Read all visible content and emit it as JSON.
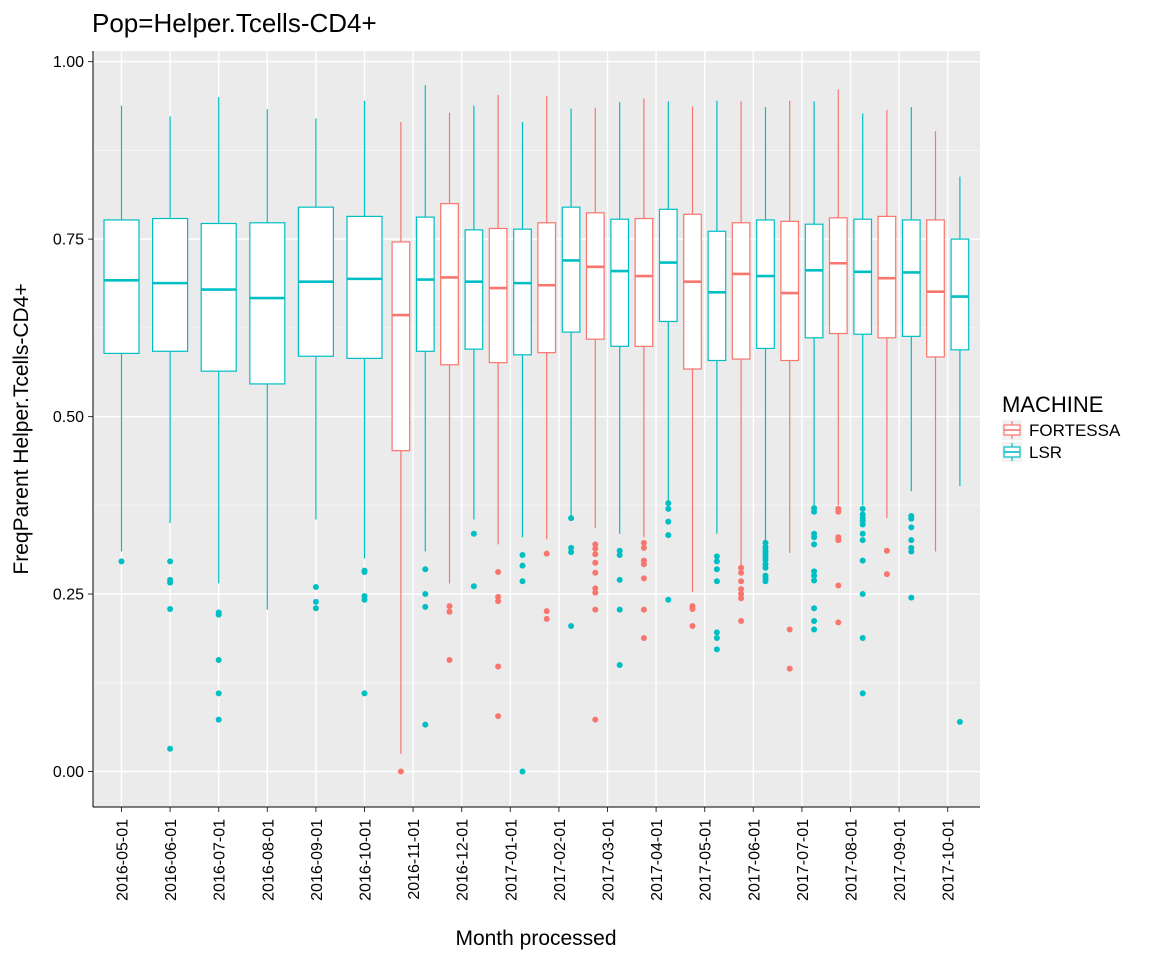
{
  "chart_data": {
    "type": "boxplot",
    "title": "Pop=Helper.Tcells-CD4+",
    "xlabel": "Month processed",
    "ylabel": "FreqParent  Helper.Tcells-CD4+",
    "ylim": [
      -0.05,
      1.015
    ],
    "yticks": [
      "0.00",
      "0.25",
      "0.50",
      "0.75",
      "1.00"
    ],
    "grid": true,
    "legend": {
      "title": "MACHINE",
      "position": "right"
    },
    "colors": {
      "FORTESSA": "#F8766D",
      "LSR": "#00BFC4"
    },
    "categories": [
      "2016-05-01",
      "2016-06-01",
      "2016-07-01",
      "2016-08-01",
      "2016-09-01",
      "2016-10-01",
      "2016-11-01",
      "2016-12-01",
      "2017-01-01",
      "2017-02-01",
      "2017-03-01",
      "2017-04-01",
      "2017-05-01",
      "2017-06-01",
      "2017-07-01",
      "2017-08-01",
      "2017-09-01",
      "2017-10-01"
    ],
    "series": [
      {
        "name": "FORTESSA",
        "boxes": [
          {
            "category": "2016-11-01",
            "min": 0.025,
            "q1": 0.452,
            "median": 0.643,
            "q3": 0.746,
            "max": 0.915,
            "outliers": [
              0.0
            ]
          },
          {
            "category": "2016-12-01",
            "min": 0.265,
            "q1": 0.573,
            "median": 0.696,
            "q3": 0.8,
            "max": 0.928,
            "outliers": [
              0.233,
              0.225,
              0.157
            ]
          },
          {
            "category": "2017-01-01",
            "min": 0.32,
            "q1": 0.576,
            "median": 0.681,
            "q3": 0.765,
            "max": 0.953,
            "outliers": [
              0.281,
              0.246,
              0.24,
              0.148,
              0.078
            ]
          },
          {
            "category": "2017-02-01",
            "min": 0.327,
            "q1": 0.59,
            "median": 0.685,
            "q3": 0.773,
            "max": 0.952,
            "outliers": [
              0.307,
              0.226,
              0.215
            ]
          },
          {
            "category": "2017-03-01",
            "min": 0.343,
            "q1": 0.609,
            "median": 0.711,
            "q3": 0.787,
            "max": 0.935,
            "outliers": [
              0.32,
              0.314,
              0.306,
              0.294,
              0.28,
              0.258,
              0.252,
              0.228,
              0.073
            ]
          },
          {
            "category": "2017-04-01",
            "min": 0.33,
            "q1": 0.599,
            "median": 0.698,
            "q3": 0.779,
            "max": 0.948,
            "outliers": [
              0.322,
              0.315,
              0.297,
              0.292,
              0.272,
              0.228,
              0.188
            ]
          },
          {
            "category": "2017-05-01",
            "min": 0.253,
            "q1": 0.567,
            "median": 0.69,
            "q3": 0.785,
            "max": 0.937,
            "outliers": [
              0.233,
              0.229,
              0.205
            ]
          },
          {
            "category": "2017-06-01",
            "min": 0.29,
            "q1": 0.581,
            "median": 0.701,
            "q3": 0.773,
            "max": 0.944,
            "outliers": [
              0.287,
              0.28,
              0.268,
              0.257,
              0.25,
              0.244,
              0.212
            ]
          },
          {
            "category": "2017-07-01",
            "min": 0.308,
            "q1": 0.579,
            "median": 0.674,
            "q3": 0.775,
            "max": 0.945,
            "outliers": [
              0.2,
              0.145
            ]
          },
          {
            "category": "2017-08-01",
            "min": 0.375,
            "q1": 0.617,
            "median": 0.716,
            "q3": 0.78,
            "max": 0.961,
            "outliers": [
              0.37,
              0.366,
              0.33,
              0.326,
              0.262,
              0.21
            ]
          },
          {
            "category": "2017-09-01",
            "min": 0.357,
            "q1": 0.611,
            "median": 0.695,
            "q3": 0.782,
            "max": 0.932,
            "outliers": [
              0.311,
              0.278
            ]
          },
          {
            "category": "2017-10-01",
            "min": 0.31,
            "q1": 0.584,
            "median": 0.676,
            "q3": 0.777,
            "max": 0.902,
            "outliers": []
          }
        ]
      },
      {
        "name": "LSR",
        "boxes": [
          {
            "category": "2016-05-01",
            "min": 0.31,
            "q1": 0.589,
            "median": 0.692,
            "q3": 0.777,
            "max": 0.938,
            "outliers": [
              0.296
            ]
          },
          {
            "category": "2016-06-01",
            "min": 0.35,
            "q1": 0.592,
            "median": 0.688,
            "q3": 0.779,
            "max": 0.923,
            "outliers": [
              0.296,
              0.27,
              0.266,
              0.229,
              0.032
            ]
          },
          {
            "category": "2016-07-01",
            "min": 0.265,
            "q1": 0.564,
            "median": 0.679,
            "q3": 0.772,
            "max": 0.95,
            "outliers": [
              0.224,
              0.221,
              0.157,
              0.11,
              0.073
            ]
          },
          {
            "category": "2016-08-01",
            "min": 0.228,
            "q1": 0.546,
            "median": 0.667,
            "q3": 0.773,
            "max": 0.933,
            "outliers": []
          },
          {
            "category": "2016-09-01",
            "min": 0.355,
            "q1": 0.585,
            "median": 0.69,
            "q3": 0.795,
            "max": 0.92,
            "outliers": [
              0.26,
              0.239,
              0.23
            ]
          },
          {
            "category": "2016-10-01",
            "min": 0.3,
            "q1": 0.582,
            "median": 0.694,
            "q3": 0.782,
            "max": 0.945,
            "outliers": [
              0.283,
              0.281,
              0.247,
              0.242,
              0.11
            ]
          },
          {
            "category": "2016-11-01",
            "min": 0.31,
            "q1": 0.592,
            "median": 0.693,
            "q3": 0.781,
            "max": 0.967,
            "outliers": [
              0.285,
              0.25,
              0.232,
              0.066
            ]
          },
          {
            "category": "2016-12-01",
            "min": 0.355,
            "q1": 0.595,
            "median": 0.69,
            "q3": 0.763,
            "max": 0.938,
            "outliers": [
              0.335,
              0.261
            ]
          },
          {
            "category": "2017-01-01",
            "min": 0.33,
            "q1": 0.587,
            "median": 0.688,
            "q3": 0.764,
            "max": 0.915,
            "outliers": [
              0.305,
              0.29,
              0.268,
              0.0
            ]
          },
          {
            "category": "2017-02-01",
            "min": 0.36,
            "q1": 0.619,
            "median": 0.72,
            "q3": 0.795,
            "max": 0.934,
            "outliers": [
              0.357,
              0.315,
              0.309,
              0.205
            ]
          },
          {
            "category": "2017-03-01",
            "min": 0.335,
            "q1": 0.599,
            "median": 0.705,
            "q3": 0.778,
            "max": 0.943,
            "outliers": [
              0.311,
              0.305,
              0.27,
              0.228,
              0.15
            ]
          },
          {
            "category": "2017-04-01",
            "min": 0.38,
            "q1": 0.634,
            "median": 0.717,
            "q3": 0.792,
            "max": 0.944,
            "outliers": [
              0.378,
              0.37,
              0.352,
              0.333,
              0.242
            ]
          },
          {
            "category": "2017-05-01",
            "min": 0.335,
            "q1": 0.579,
            "median": 0.675,
            "q3": 0.761,
            "max": 0.945,
            "outliers": [
              0.303,
              0.296,
              0.285,
              0.268,
              0.196,
              0.188,
              0.172
            ]
          },
          {
            "category": "2017-06-01",
            "min": 0.325,
            "q1": 0.596,
            "median": 0.698,
            "q3": 0.777,
            "max": 0.936,
            "outliers": [
              0.322,
              0.316,
              0.311,
              0.307,
              0.302,
              0.298,
              0.292,
              0.287,
              0.276,
              0.272,
              0.268
            ]
          },
          {
            "category": "2017-07-01",
            "min": 0.375,
            "q1": 0.611,
            "median": 0.706,
            "q3": 0.771,
            "max": 0.944,
            "outliers": [
              0.371,
              0.366,
              0.335,
              0.33,
              0.32,
              0.282,
              0.276,
              0.269,
              0.23,
              0.212,
              0.2
            ]
          },
          {
            "category": "2017-08-01",
            "min": 0.375,
            "q1": 0.616,
            "median": 0.704,
            "q3": 0.778,
            "max": 0.927,
            "outliers": [
              0.37,
              0.362,
              0.357,
              0.353,
              0.348,
              0.335,
              0.326,
              0.297,
              0.25,
              0.188,
              0.11
            ]
          },
          {
            "category": "2017-09-01",
            "min": 0.395,
            "q1": 0.613,
            "median": 0.703,
            "q3": 0.777,
            "max": 0.936,
            "outliers": [
              0.36,
              0.356,
              0.344,
              0.326,
              0.315,
              0.31,
              0.245
            ]
          },
          {
            "category": "2017-10-01",
            "min": 0.402,
            "q1": 0.594,
            "median": 0.669,
            "q3": 0.75,
            "max": 0.838,
            "outliers": [
              0.07
            ]
          }
        ]
      }
    ]
  }
}
